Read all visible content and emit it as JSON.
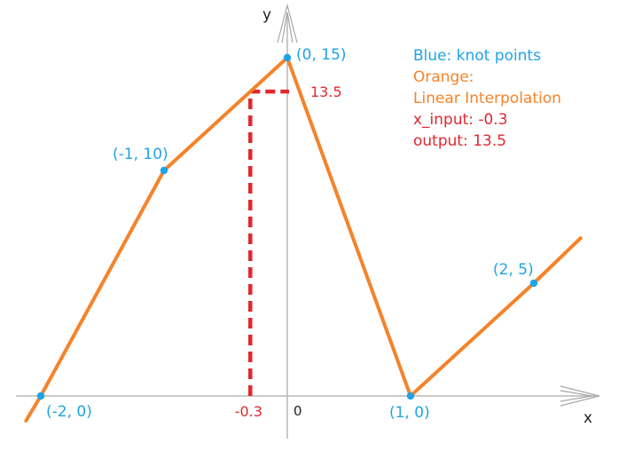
{
  "chart_data": {
    "type": "line",
    "series": [
      {
        "name": "Linear Interpolation",
        "color": "#f5832a",
        "x": [
          -2.12,
          -2,
          -1,
          0,
          1,
          2,
          2.38
        ],
        "y": [
          -1.1,
          0,
          10,
          15,
          0,
          5,
          7.0
        ]
      }
    ],
    "knots": [
      {
        "x": -2,
        "y": 0,
        "label": "(-2, 0)"
      },
      {
        "x": -1,
        "y": 10,
        "label": "(-1, 10)"
      },
      {
        "x": 0,
        "y": 15,
        "label": "(0, 15)"
      },
      {
        "x": 1,
        "y": 0,
        "label": "(1, 0)"
      },
      {
        "x": 2,
        "y": 5,
        "label": "(2, 5)"
      }
    ],
    "knot_color": "#1ea4e6",
    "query": {
      "x": -0.3,
      "y": 13.5,
      "x_label": "-0.3",
      "y_label": "13.5",
      "color": "#e0282e"
    },
    "xlabel": "x",
    "ylabel": "y",
    "origin_label": "0",
    "legend": [
      {
        "text": "Blue: knot points",
        "color": "#1ea4e6"
      },
      {
        "text": "Orange:",
        "color": "#f5832a"
      },
      {
        "text": "Linear Interpolation",
        "color": "#f5832a"
      },
      {
        "text": "x_input: -0.3",
        "color": "#e0282e"
      },
      {
        "text": "output: 13.5",
        "color": "#e0282e"
      }
    ],
    "legend_position": "top-right",
    "grid": false
  }
}
